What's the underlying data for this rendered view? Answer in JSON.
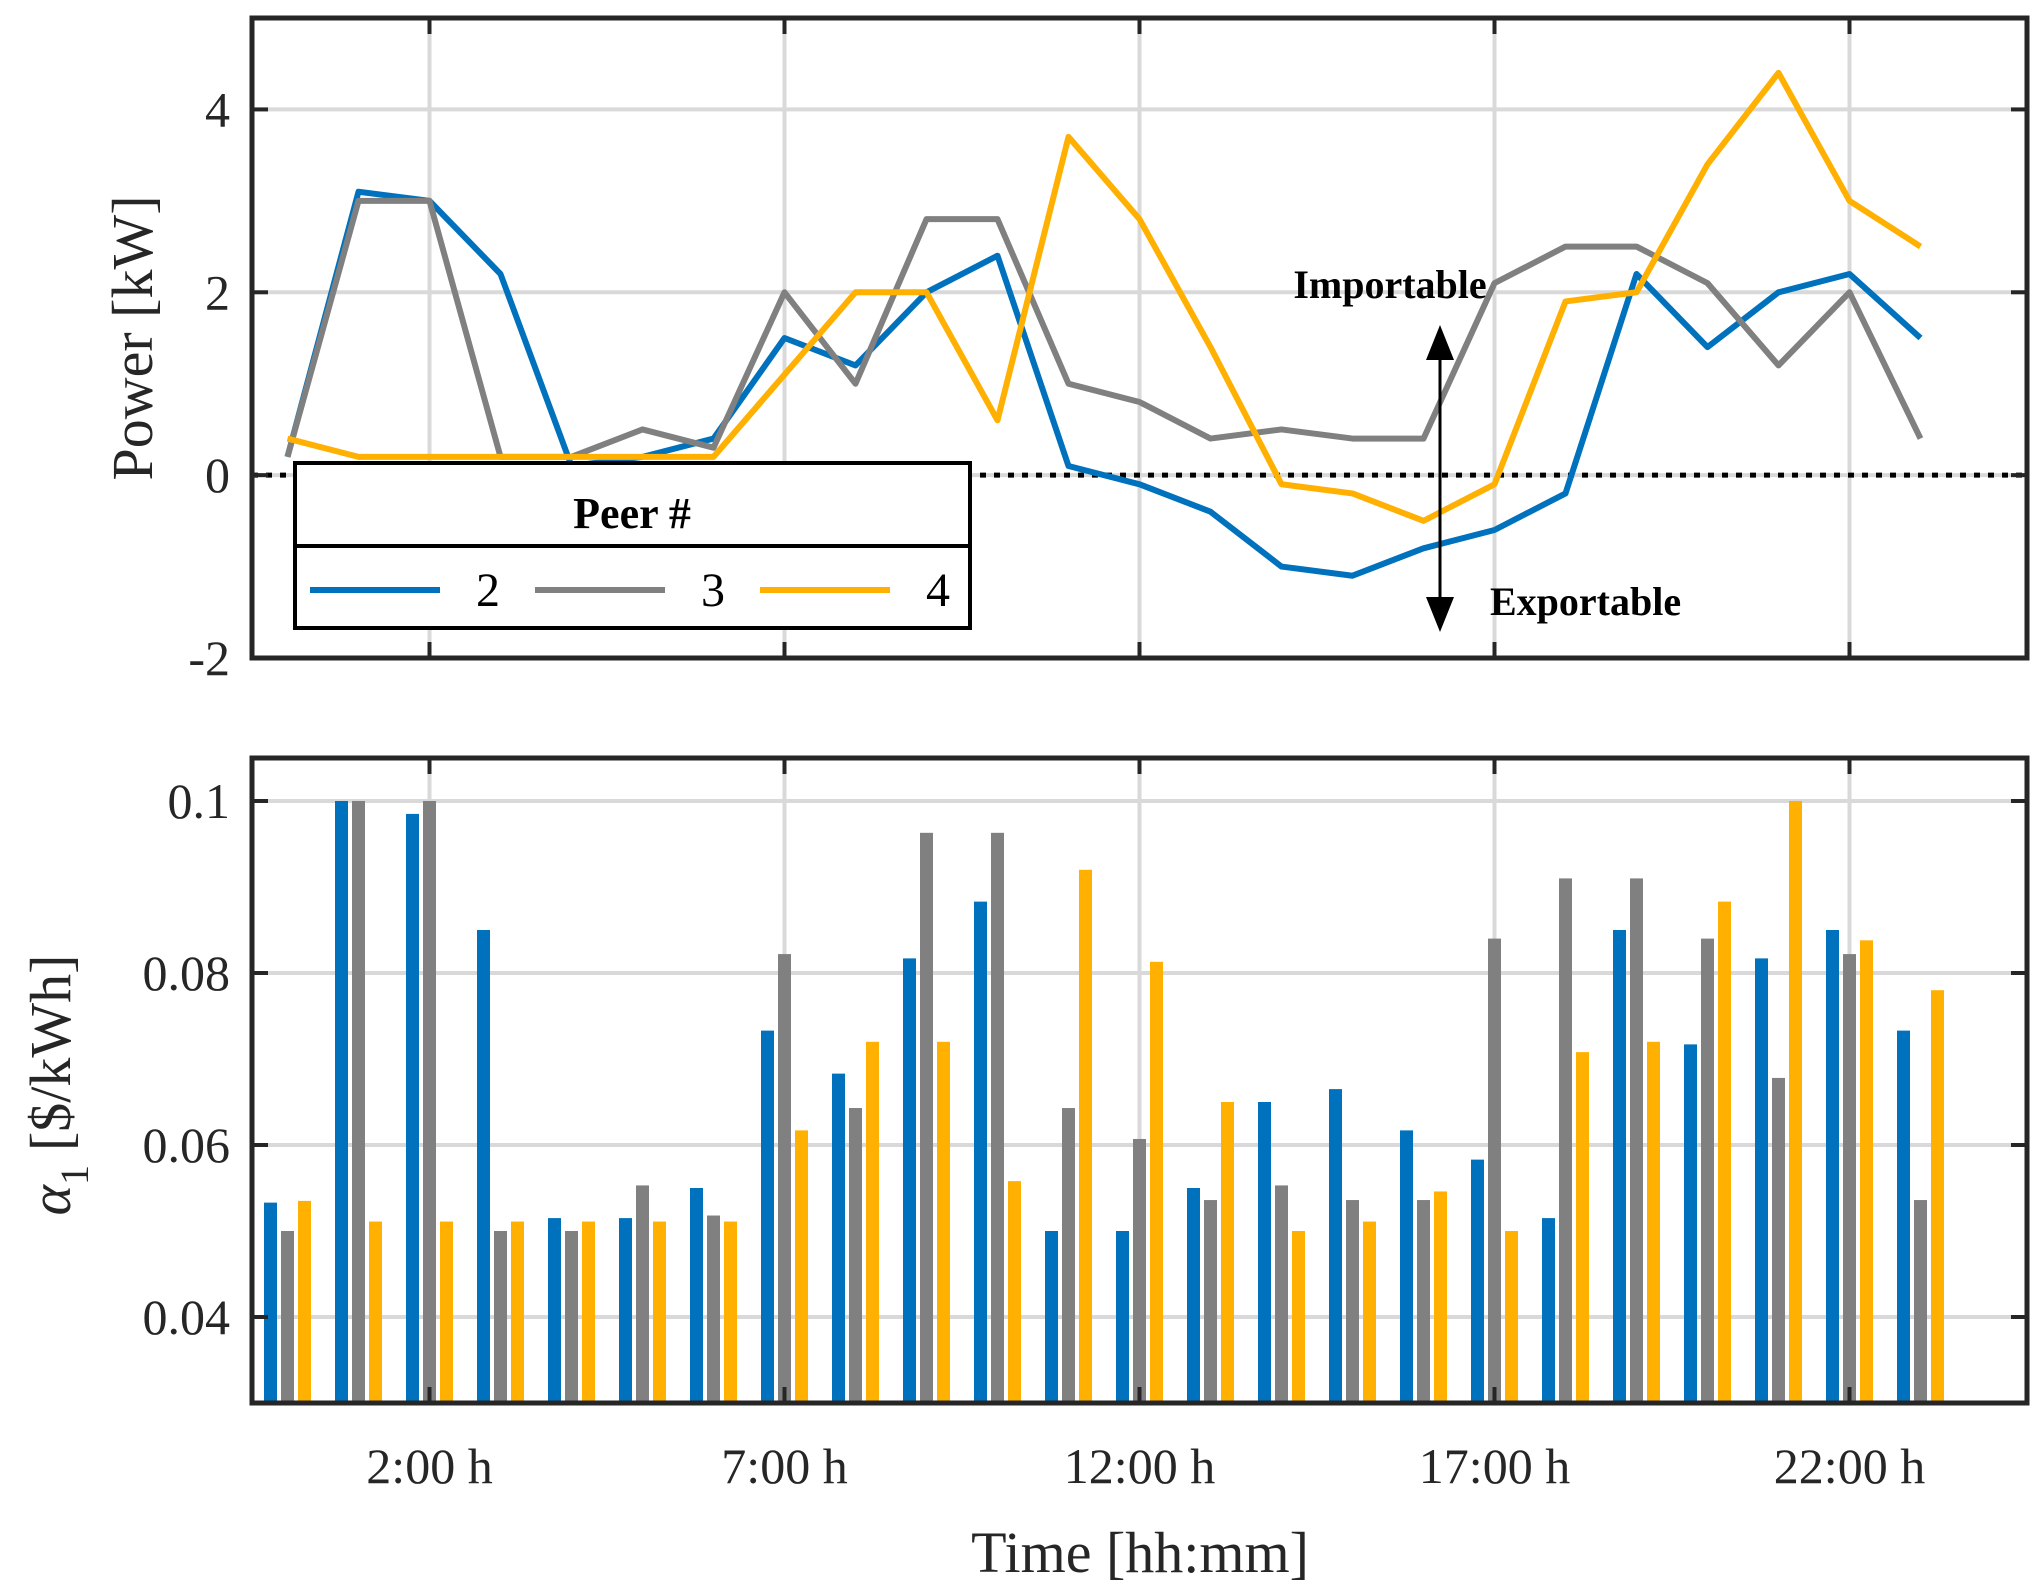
{
  "chart_data": [
    {
      "type": "line",
      "xlabel": "",
      "ylabel": "Power [kW]",
      "ylim": [
        -2,
        5
      ],
      "yticks": [
        "-2",
        "0",
        "2",
        "4"
      ],
      "grid": true,
      "legend_title": "Peer #",
      "legend_position": "lower-left",
      "x": [
        1,
        2,
        3,
        4,
        5,
        6,
        7,
        8,
        9,
        10,
        11,
        12,
        13,
        14,
        15,
        16,
        17,
        18,
        19,
        20,
        21,
        22,
        23,
        24
      ],
      "series": [
        {
          "name": "2",
          "color": "#0072BD",
          "values": [
            0.2,
            3.1,
            3.0,
            2.2,
            0.1,
            0.2,
            0.4,
            1.5,
            1.2,
            2.0,
            2.4,
            0.1,
            -0.1,
            -0.4,
            -1.0,
            -1.1,
            -0.8,
            -0.6,
            -0.2,
            2.2,
            1.4,
            2.0,
            2.2,
            1.5
          ]
        },
        {
          "name": "3",
          "color": "#808080",
          "values": [
            0.2,
            3.0,
            3.0,
            0.2,
            0.2,
            0.5,
            0.3,
            2.0,
            1.0,
            2.8,
            2.8,
            1.0,
            0.8,
            0.4,
            0.5,
            0.4,
            0.4,
            2.1,
            2.5,
            2.5,
            2.1,
            1.2,
            2.0,
            0.4
          ]
        },
        {
          "name": "4",
          "color": "#FFB000",
          "values": [
            0.4,
            0.2,
            0.2,
            0.2,
            0.2,
            0.2,
            0.2,
            1.1,
            2.0,
            2.0,
            0.6,
            3.7,
            2.8,
            1.4,
            -0.1,
            -0.2,
            -0.5,
            -0.1,
            1.9,
            2.0,
            3.4,
            4.4,
            3.0,
            2.5
          ]
        }
      ],
      "annotations": [
        "Importable",
        "Exportable"
      ],
      "reference_line_y": 0
    },
    {
      "type": "bar",
      "xlabel": "Time [hh:mm]",
      "ylabel": "α",
      "ylabel_subscript": "1",
      "ylabel_units": "[$/kWh]",
      "ylim": [
        0.03,
        0.105
      ],
      "yticks": [
        "0.04",
        "0.06",
        "0.08",
        "0.1"
      ],
      "xticks": [
        {
          "x": 3,
          "label": "2:00 h"
        },
        {
          "x": 8,
          "label": "7:00 h"
        },
        {
          "x": 13,
          "label": "12:00 h"
        },
        {
          "x": 18,
          "label": "17:00 h"
        },
        {
          "x": 23,
          "label": "22:00 h"
        }
      ],
      "grid": true,
      "x": [
        1,
        2,
        3,
        4,
        5,
        6,
        7,
        8,
        9,
        10,
        11,
        12,
        13,
        14,
        15,
        16,
        17,
        18,
        19,
        20,
        21,
        22,
        23,
        24
      ],
      "series": [
        {
          "name": "2",
          "color": "#0072BD",
          "values": [
            0.0533,
            0.1,
            0.0985,
            0.085,
            0.0515,
            0.0515,
            0.055,
            0.0733,
            0.0683,
            0.0817,
            0.0883,
            0.05,
            0.05,
            0.055,
            0.065,
            0.0665,
            0.0617,
            0.0583,
            0.0515,
            0.085,
            0.0717,
            0.0817,
            0.085,
            0.0733
          ]
        },
        {
          "name": "3",
          "color": "#808080",
          "values": [
            0.05,
            0.1,
            0.1,
            0.05,
            0.05,
            0.0553,
            0.0518,
            0.0822,
            0.0643,
            0.0963,
            0.0963,
            0.0643,
            0.0607,
            0.0536,
            0.0553,
            0.0536,
            0.0536,
            0.084,
            0.091,
            0.091,
            0.084,
            0.0678,
            0.0822,
            0.0536
          ]
        },
        {
          "name": "4",
          "color": "#FFB000",
          "values": [
            0.0535,
            0.0511,
            0.0511,
            0.0511,
            0.0511,
            0.0511,
            0.0511,
            0.0617,
            0.072,
            0.072,
            0.0558,
            0.092,
            0.0813,
            0.065,
            0.05,
            0.0511,
            0.0546,
            0.05,
            0.0708,
            0.072,
            0.0883,
            0.1,
            0.0838,
            0.078
          ]
        }
      ]
    }
  ]
}
